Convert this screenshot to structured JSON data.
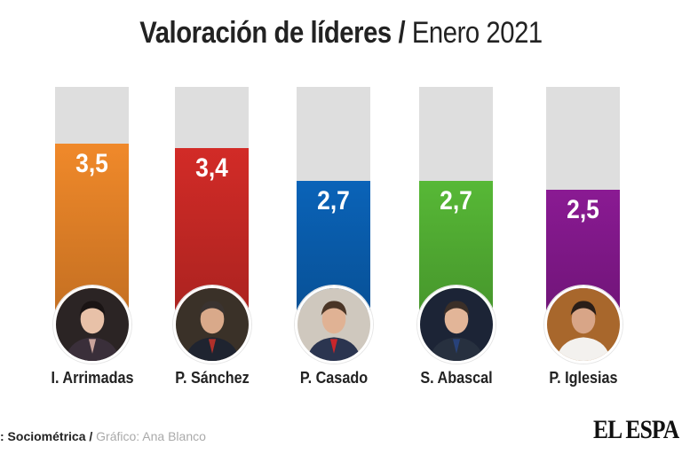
{
  "header": {
    "title_bold": "Valoración de líderes",
    "title_separator": " / ",
    "title_light": "Enero 2021"
  },
  "chart_data": {
    "type": "bar",
    "title": "Valoración de líderes / Enero 2021",
    "xlabel": "",
    "ylabel": "",
    "categories": [
      "I. Arrimadas",
      "P. Sánchez",
      "P. Casado",
      "S. Abascal",
      "P. Iglesias"
    ],
    "values": [
      3.5,
      3.4,
      2.7,
      2.7,
      2.5
    ],
    "value_labels": [
      "3,5",
      "3,4",
      "2,7",
      "2,7",
      "2,5"
    ],
    "colors": [
      "#f0892a",
      "#d22b27",
      "#0a63b8",
      "#57b836",
      "#8a1a93"
    ],
    "ylim": [
      0,
      4.75
    ],
    "grid": false,
    "legend": "none"
  },
  "leaders": [
    {
      "name": "I. Arrimadas",
      "value_label": "3,5",
      "photo": "portrait-arrimadas"
    },
    {
      "name": "P. Sánchez",
      "value_label": "3,4",
      "photo": "portrait-sanchez"
    },
    {
      "name": "P. Casado",
      "value_label": "2,7",
      "photo": "portrait-casado"
    },
    {
      "name": "S. Abascal",
      "value_label": "2,7",
      "photo": "portrait-abascal"
    },
    {
      "name": "P. Iglesias",
      "value_label": "2,5",
      "photo": "portrait-iglesias"
    }
  ],
  "footer": {
    "source": ": Sociométrica",
    "separator": " / ",
    "credit": "Gráfico: Ana Blanco",
    "logo": "EL ESPA"
  }
}
